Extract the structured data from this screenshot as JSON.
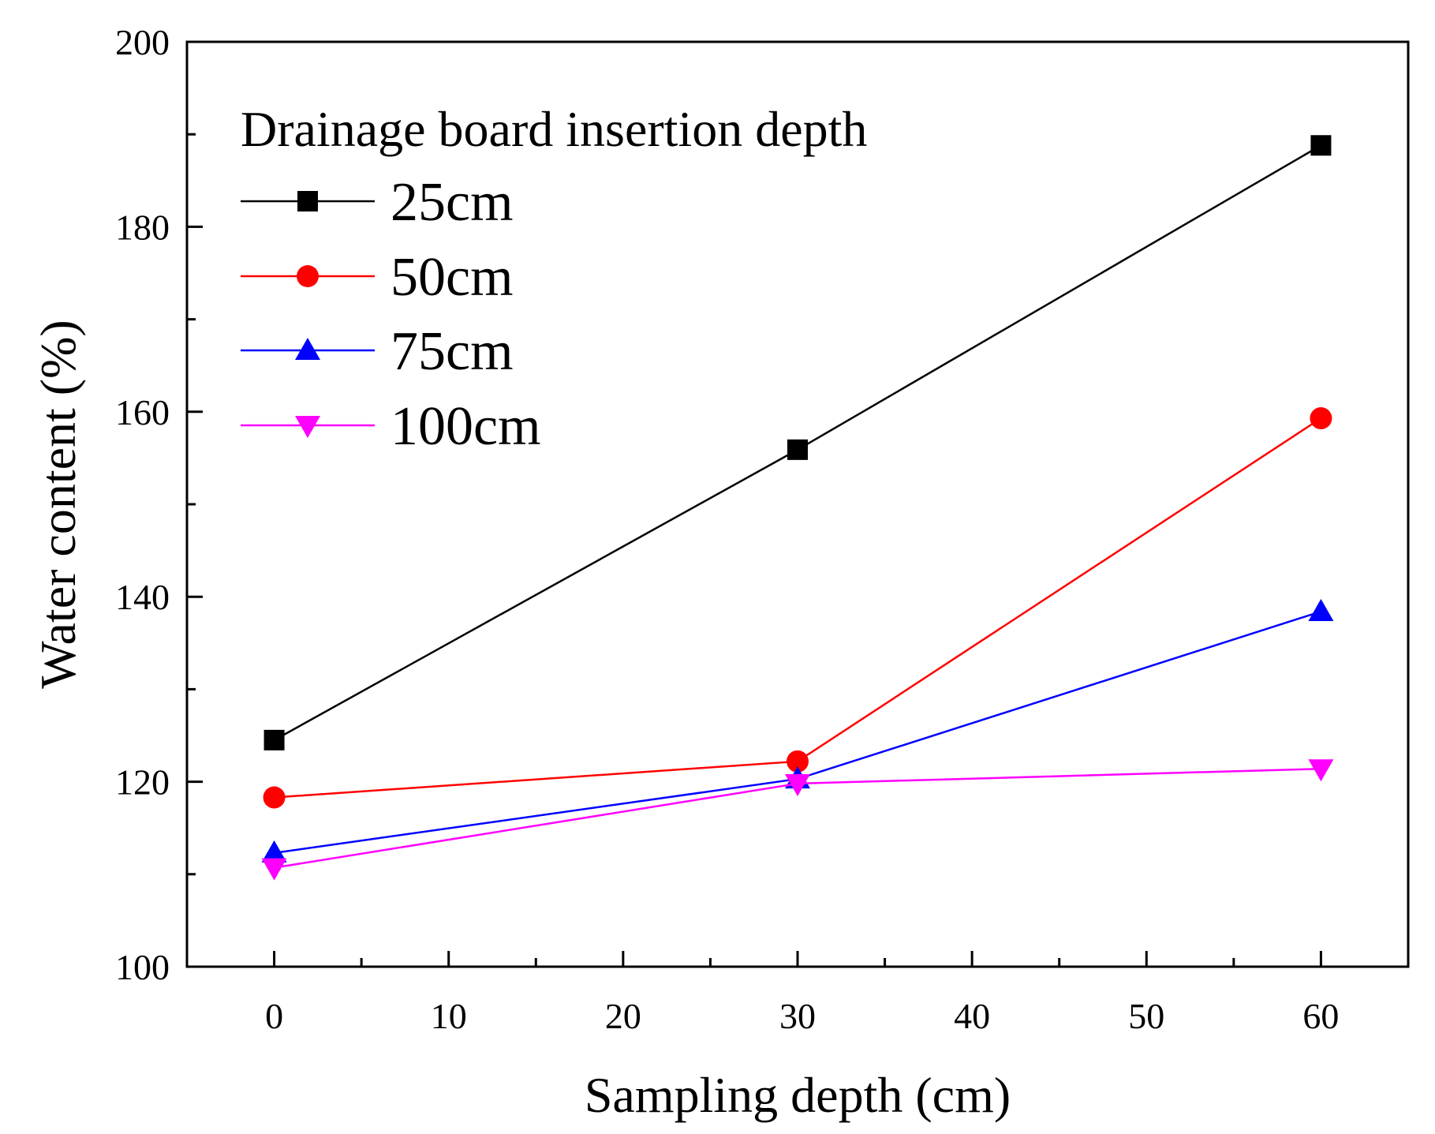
{
  "chart_data": {
    "type": "line",
    "title": "",
    "xlabel": "Sampling depth (cm)",
    "ylabel": "Water content (%)",
    "xlim": [
      -5,
      65
    ],
    "ylim": [
      100,
      200
    ],
    "xticks": [
      0,
      10,
      20,
      30,
      40,
      50,
      60
    ],
    "xtick_labels": [
      "0",
      "10",
      "20",
      "30",
      "40",
      "50",
      "60"
    ],
    "yticks": [
      100,
      120,
      140,
      160,
      180,
      200
    ],
    "ytick_labels": [
      "100",
      "120",
      "140",
      "160",
      "180",
      "200"
    ],
    "grid": false,
    "legend": {
      "title": "Drainage board insertion depth",
      "placement": "top-left"
    },
    "x": [
      0,
      30,
      60
    ],
    "series": [
      {
        "name": "25cm",
        "values": [
          124.5,
          155.9,
          188.8
        ],
        "color": "#000000",
        "marker": "square"
      },
      {
        "name": "50cm",
        "values": [
          118.3,
          122.2,
          159.3
        ],
        "color": "#ff0000",
        "marker": "circle"
      },
      {
        "name": "75cm",
        "values": [
          112.3,
          120.3,
          138.4
        ],
        "color": "#0000ff",
        "marker": "triangle-up"
      },
      {
        "name": "100cm",
        "values": [
          110.7,
          119.8,
          121.4
        ],
        "color": "#ff00ff",
        "marker": "triangle-down"
      }
    ]
  }
}
